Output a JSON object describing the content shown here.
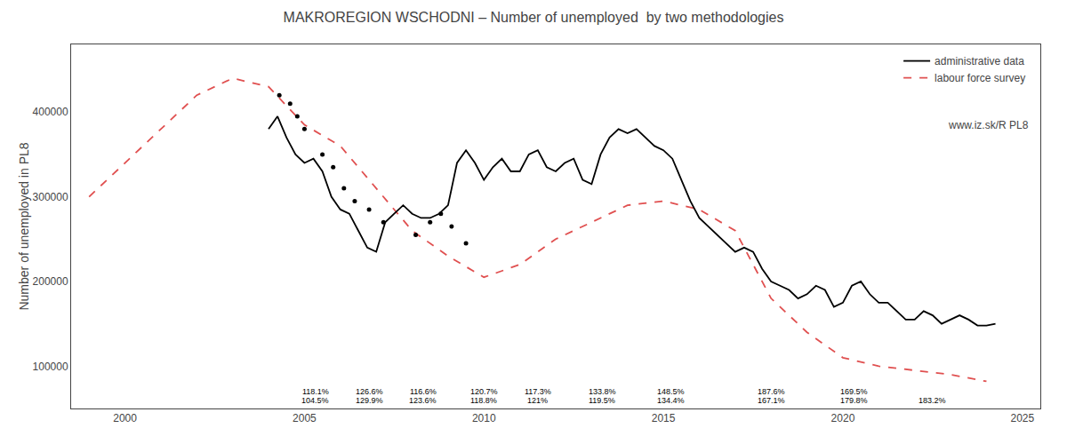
{
  "chart_data": {
    "type": "line",
    "title": "MAKROREGION WSCHODNI – Number of unemployed  by two methodologies",
    "y_label": "Number of unemployed in PL8",
    "xlim": [
      1998.5,
      2025.5
    ],
    "xticks": [
      2000,
      2005,
      2010,
      2015,
      2020,
      2025
    ],
    "ylim": [
      50000,
      480000
    ],
    "yticks": [
      100000,
      200000,
      300000,
      400000
    ],
    "grid": false,
    "legend": "upper right",
    "series": [
      {
        "name": "labour force survey",
        "type": "line",
        "color": "#e05050",
        "line_style": "dashed",
        "x": [
          1999,
          2000,
          2001,
          2002,
          2003,
          2004,
          2005,
          2006,
          2007,
          2008,
          2009,
          2010,
          2011,
          2012,
          2013,
          2014,
          2015,
          2016,
          2017,
          2018,
          2019,
          2020,
          2021,
          2022,
          2023,
          2024
        ],
        "values": [
          300000,
          340000,
          380000,
          420000,
          440000,
          430000,
          385000,
          360000,
          310000,
          260000,
          230000,
          205000,
          220000,
          250000,
          270000,
          290000,
          295000,
          285000,
          260000,
          180000,
          140000,
          110000,
          100000,
          95000,
          90000,
          82000
        ]
      },
      {
        "name": "administrative data",
        "type": "line",
        "color": "#000000",
        "line_style": "solid",
        "x": [
          2004,
          2004.25,
          2004.5,
          2004.75,
          2005,
          2005.25,
          2005.5,
          2005.75,
          2006,
          2006.25,
          2006.5,
          2006.75,
          2007,
          2007.25,
          2007.5,
          2007.75,
          2008,
          2008.25,
          2008.5,
          2008.75,
          2009,
          2009.25,
          2009.5,
          2009.75,
          2010,
          2010.25,
          2010.5,
          2010.75,
          2011,
          2011.25,
          2011.5,
          2011.75,
          2012,
          2012.25,
          2012.5,
          2012.75,
          2013,
          2013.25,
          2013.5,
          2013.75,
          2014,
          2014.25,
          2014.5,
          2014.75,
          2015,
          2015.25,
          2015.5,
          2015.75,
          2016,
          2016.25,
          2016.5,
          2016.75,
          2017,
          2017.25,
          2017.5,
          2017.75,
          2018,
          2018.25,
          2018.5,
          2018.75,
          2019,
          2019.25,
          2019.5,
          2019.75,
          2020,
          2020.25,
          2020.5,
          2020.75,
          2021,
          2021.25,
          2021.5,
          2021.75,
          2022,
          2022.25,
          2022.5,
          2022.75,
          2023,
          2023.25,
          2023.5,
          2023.75,
          2024,
          2024.25
        ],
        "values": [
          380000,
          395000,
          370000,
          350000,
          340000,
          345000,
          330000,
          300000,
          285000,
          280000,
          260000,
          240000,
          235000,
          270000,
          280000,
          290000,
          280000,
          275000,
          275000,
          280000,
          290000,
          340000,
          355000,
          340000,
          320000,
          335000,
          345000,
          330000,
          330000,
          350000,
          355000,
          335000,
          330000,
          340000,
          345000,
          320000,
          315000,
          350000,
          370000,
          380000,
          375000,
          380000,
          370000,
          360000,
          355000,
          345000,
          320000,
          295000,
          275000,
          265000,
          255000,
          245000,
          235000,
          240000,
          235000,
          215000,
          200000,
          195000,
          190000,
          180000,
          185000,
          195000,
          190000,
          170000,
          175000,
          195000,
          200000,
          185000,
          175000,
          175000,
          165000,
          155000,
          155000,
          165000,
          160000,
          150000,
          155000,
          160000,
          155000,
          148000,
          148000,
          150000
        ]
      },
      {
        "type": "scatter",
        "color": "#000000",
        "marker": "circle",
        "x": [
          2004.3,
          2004.6,
          2004.8,
          2005.0,
          2005.5,
          2005.8,
          2006.1,
          2006.4,
          2006.8,
          2007.2,
          2008.1,
          2008.5,
          2008.8,
          2009.1,
          2009.5
        ],
        "values": [
          420000,
          410000,
          395000,
          380000,
          350000,
          335000,
          310000,
          295000,
          285000,
          270000,
          255000,
          270000,
          280000,
          265000,
          245000
        ]
      }
    ],
    "annotations": [
      {
        "text": "118.1%",
        "x": 2005.3,
        "y": 63000
      },
      {
        "text": "126.6%",
        "x": 2006.8,
        "y": 63000
      },
      {
        "text": "116.6%",
        "x": 2008.3,
        "y": 63000
      },
      {
        "text": "120.7%",
        "x": 2010.0,
        "y": 63000
      },
      {
        "text": "117.3%",
        "x": 2011.5,
        "y": 63000
      },
      {
        "text": "133.8%",
        "x": 2013.3,
        "y": 63000
      },
      {
        "text": "148.5%",
        "x": 2015.2,
        "y": 63000
      },
      {
        "text": "187.6%",
        "x": 2018.0,
        "y": 63000
      },
      {
        "text": "169.5%",
        "x": 2020.3,
        "y": 63000
      },
      {
        "text": "104.5%",
        "x": 2005.3,
        "y": 52000
      },
      {
        "text": "129.9%",
        "x": 2006.8,
        "y": 52000
      },
      {
        "text": "123.6%",
        "x": 2008.3,
        "y": 52000
      },
      {
        "text": "118.8%",
        "x": 2010.0,
        "y": 52000
      },
      {
        "text": "121%",
        "x": 2011.5,
        "y": 52000
      },
      {
        "text": "119.5%",
        "x": 2013.3,
        "y": 52000
      },
      {
        "text": "134.4%",
        "x": 2015.2,
        "y": 52000
      },
      {
        "text": "167.1%",
        "x": 2018.0,
        "y": 52000
      },
      {
        "text": "179.8%",
        "x": 2020.3,
        "y": 52000
      },
      {
        "text": "183.2%",
        "x": 2022.5,
        "y": 52000
      },
      {
        "text": "www.iz.sk/R PL8"
      }
    ]
  }
}
